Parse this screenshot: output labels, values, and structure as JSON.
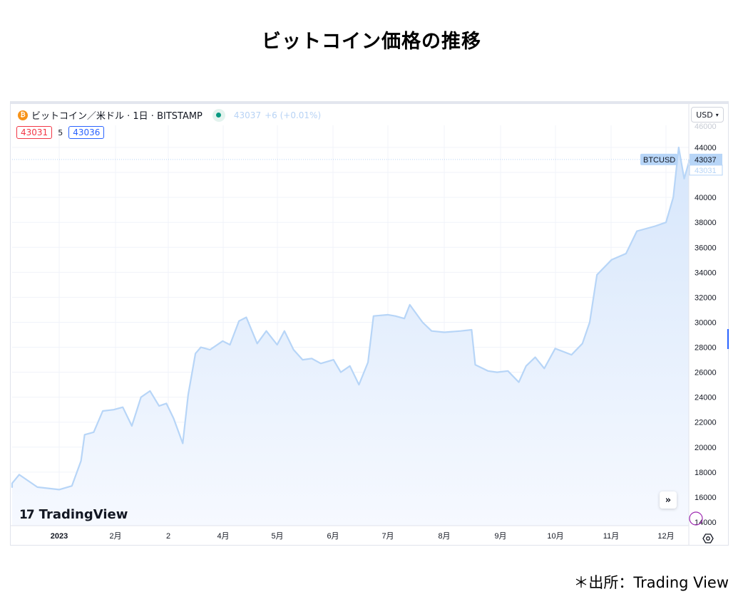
{
  "page": {
    "title": "ビットコイン価格の推移",
    "source": "＊出所：Trading View"
  },
  "legend": {
    "symbol_icon": "bitcoin-icon",
    "symbol_icon_glyph": "₿",
    "symbol_text": "ビットコイン／米ドル · 1日 · BITSTAMP",
    "market_status": "live-dot-icon",
    "last_price": "43037",
    "change": "+6 (+0.01%)"
  },
  "quote": {
    "bid": "43031",
    "spread": "5",
    "ask": "43036"
  },
  "currency_selector": {
    "value": "USD",
    "chevron": "⌄"
  },
  "price_labels": {
    "symbol": "BTCUSD",
    "last": "43037",
    "bid": "43031"
  },
  "branding": {
    "logo_mark": "𝟏𝟕",
    "logo_text": "TradingView"
  },
  "controls": {
    "scroll_to_realtime": "»",
    "settings": "⚙"
  },
  "colors": {
    "line": "#b7d5f7",
    "area_top": "#d6e6fb",
    "area_bottom": "#f6f9ff",
    "grid": "#f0f3fa",
    "axis_text": "#131722",
    "bid": "#f23645",
    "ask": "#2962ff",
    "live": "#089981"
  },
  "chart_data": {
    "type": "area",
    "title": "ビットコイン価格の推移",
    "subtitle": "ビットコイン／米ドル · 1日 · BITSTAMP",
    "xlabel": "",
    "ylabel": "USD",
    "ylim": [
      14000,
      45000
    ],
    "grid": true,
    "legend_position": "top-left",
    "x_tick_labels": [
      "2023",
      "2月",
      "2",
      "4月",
      "5月",
      "6月",
      "7月",
      "8月",
      "9月",
      "10月",
      "11月",
      "12月"
    ],
    "y_tick_labels": [
      "14000",
      "16000",
      "18000",
      "20000",
      "22000",
      "24000",
      "26000",
      "28000",
      "30000",
      "32000",
      "34000",
      "36000",
      "38000",
      "40000",
      "44000"
    ],
    "series": [
      {
        "name": "BTCUSD",
        "x": [
          "2022-11-10",
          "2022-11-20",
          "2022-12-01",
          "2022-12-10",
          "2022-12-20",
          "2023-01-01",
          "2023-01-08",
          "2023-01-13",
          "2023-01-15",
          "2023-01-20",
          "2023-01-25",
          "2023-01-31",
          "2023-02-05",
          "2023-02-10",
          "2023-02-15",
          "2023-02-20",
          "2023-02-25",
          "2023-03-01",
          "2023-03-05",
          "2023-03-10",
          "2023-03-13",
          "2023-03-17",
          "2023-03-20",
          "2023-03-25",
          "2023-04-01",
          "2023-04-05",
          "2023-04-10",
          "2023-04-14",
          "2023-04-20",
          "2023-04-25",
          "2023-05-01",
          "2023-05-05",
          "2023-05-10",
          "2023-05-15",
          "2023-05-20",
          "2023-05-25",
          "2023-06-01",
          "2023-06-05",
          "2023-06-10",
          "2023-06-15",
          "2023-06-20",
          "2023-06-23",
          "2023-07-01",
          "2023-07-05",
          "2023-07-10",
          "2023-07-13",
          "2023-07-20",
          "2023-07-25",
          "2023-08-01",
          "2023-08-10",
          "2023-08-16",
          "2023-08-18",
          "2023-08-25",
          "2023-08-30",
          "2023-09-05",
          "2023-09-11",
          "2023-09-15",
          "2023-09-20",
          "2023-09-25",
          "2023-10-01",
          "2023-10-10",
          "2023-10-16",
          "2023-10-20",
          "2023-10-24",
          "2023-11-01",
          "2023-11-09",
          "2023-11-15",
          "2023-11-20",
          "2023-11-25",
          "2023-12-01",
          "2023-12-05",
          "2023-12-08",
          "2023-12-11",
          "2023-12-15",
          "2023-12-18"
        ],
        "values": [
          17000,
          16800,
          17100,
          17800,
          16800,
          16600,
          16900,
          18900,
          21000,
          21200,
          22900,
          23000,
          23200,
          21700,
          24000,
          24500,
          23300,
          23500,
          22300,
          20300,
          24200,
          27500,
          28000,
          27800,
          28500,
          28200,
          30100,
          30400,
          28300,
          29300,
          28200,
          29300,
          27800,
          27000,
          27100,
          26700,
          27000,
          26000,
          26500,
          25000,
          26800,
          30500,
          30600,
          30500,
          30300,
          31400,
          30000,
          29300,
          29200,
          29300,
          29400,
          26600,
          26100,
          26000,
          26100,
          25200,
          26500,
          27200,
          26300,
          27900,
          27400,
          28300,
          30000,
          33800,
          35000,
          35500,
          37300,
          37500,
          37700,
          38000,
          40000,
          44000,
          41500,
          42800,
          43037
        ]
      }
    ],
    "annotations": [
      {
        "type": "price_line",
        "label": "BTCUSD",
        "value": 43037
      },
      {
        "type": "price_label",
        "label": "bid",
        "value": 43031
      }
    ]
  }
}
